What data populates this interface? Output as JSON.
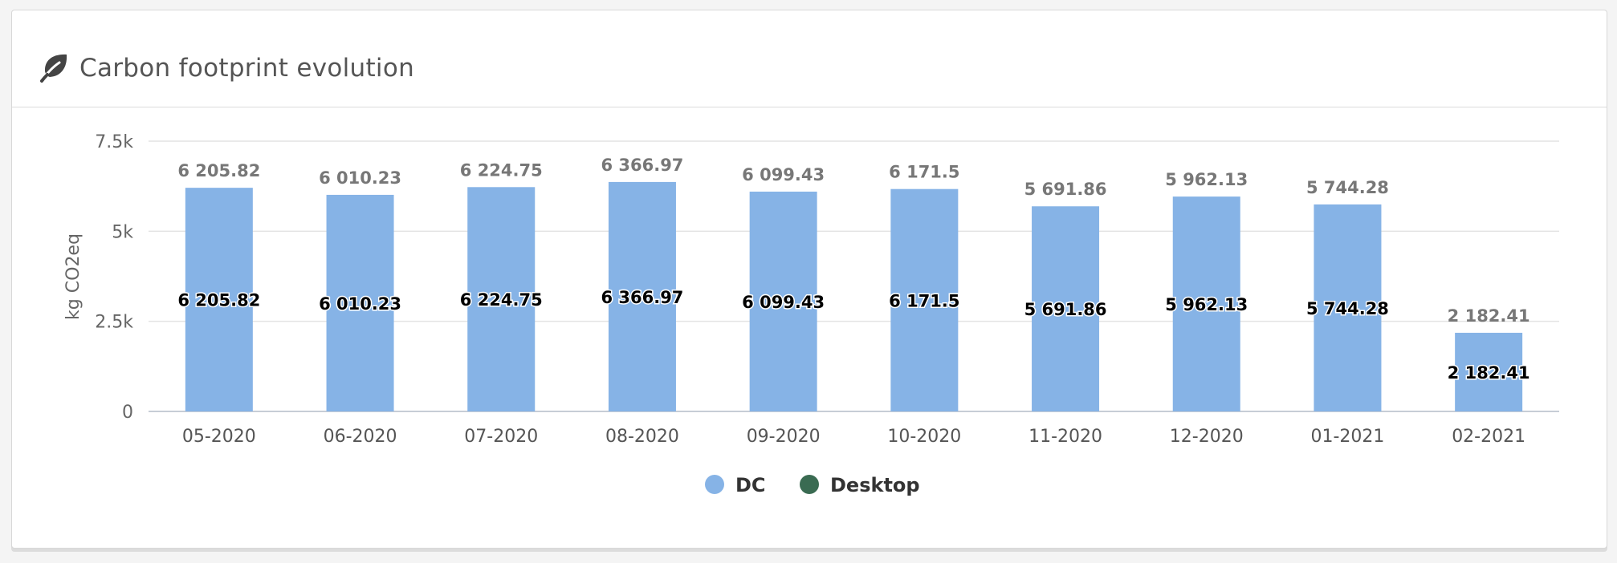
{
  "card": {
    "title": "Carbon footprint evolution",
    "icon": "leaf-icon"
  },
  "chart_data": {
    "type": "bar",
    "ylabel": "kg CO2eq",
    "xlabel": "",
    "ylim": [
      0,
      7500
    ],
    "yticks": [
      0,
      2500,
      5000,
      7500
    ],
    "ytick_labels": [
      "0",
      "2.5k",
      "5k",
      "7.5k"
    ],
    "grid": true,
    "legend_position": "bottom-center",
    "categories": [
      "05-2020",
      "06-2020",
      "07-2020",
      "08-2020",
      "09-2020",
      "10-2020",
      "11-2020",
      "12-2020",
      "01-2021",
      "02-2021"
    ],
    "series": [
      {
        "name": "DC",
        "color": "#86b3e6",
        "values": [
          6205.82,
          6010.23,
          6224.75,
          6366.97,
          6099.43,
          6171.5,
          5691.86,
          5962.13,
          5744.28,
          2182.41
        ],
        "labels": [
          "6 205.82",
          "6 010.23",
          "6 224.75",
          "6 366.97",
          "6 099.43",
          "6 171.5",
          "5 691.86",
          "5 962.13",
          "5 744.28",
          "2 182.41"
        ]
      },
      {
        "name": "Desktop",
        "color": "#3a6b52",
        "values": [
          0,
          0,
          0,
          0,
          0,
          0,
          0,
          0,
          0,
          0
        ]
      }
    ]
  }
}
